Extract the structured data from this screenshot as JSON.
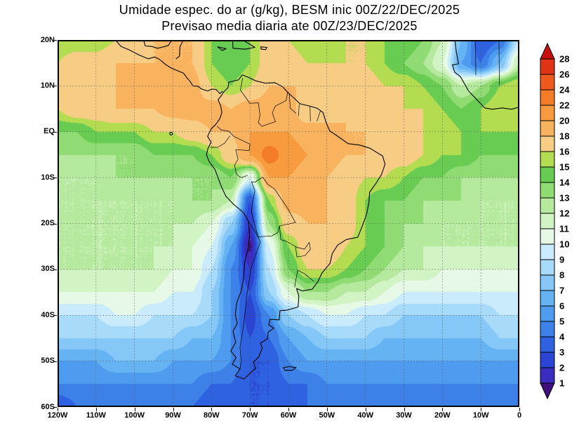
{
  "title": {
    "line1": "Umidade espec. do ar (g/kg), BESM inic 00Z/22/DEC/2025",
    "line2": "Previsao media diaria ate 00Z/23/DEC/2025"
  },
  "chart_data": {
    "type": "heatmap",
    "title": "Umidade espec. do ar (g/kg), BESM inic 00Z/22/DEC/2025",
    "subtitle": "Previsao media diaria ate 00Z/23/DEC/2025",
    "units": "g/kg",
    "lon_range": [
      -120,
      0
    ],
    "lat_range": [
      -60,
      20
    ],
    "grid_on": true,
    "legend_position": "right",
    "lat_ticks": [
      {
        "label": "20N",
        "value": 20
      },
      {
        "label": "10N",
        "value": 10
      },
      {
        "label": "EQ",
        "value": 0
      },
      {
        "label": "10S",
        "value": -10
      },
      {
        "label": "20S",
        "value": -20
      },
      {
        "label": "30S",
        "value": -30
      },
      {
        "label": "40S",
        "value": -40
      },
      {
        "label": "50S",
        "value": -50
      },
      {
        "label": "60S",
        "value": -60
      }
    ],
    "lon_ticks": [
      {
        "label": "120W",
        "value": -120
      },
      {
        "label": "110W",
        "value": -110
      },
      {
        "label": "100W",
        "value": -100
      },
      {
        "label": "90W",
        "value": -90
      },
      {
        "label": "80W",
        "value": -80
      },
      {
        "label": "70W",
        "value": -70
      },
      {
        "label": "60W",
        "value": -60
      },
      {
        "label": "50W",
        "value": -50
      },
      {
        "label": "40W",
        "value": -40
      },
      {
        "label": "30W",
        "value": -30
      },
      {
        "label": "20W",
        "value": -20
      },
      {
        "label": "10W",
        "value": -10
      },
      {
        "label": "0",
        "value": 0
      }
    ],
    "colorbar": {
      "levels": [
        1,
        2,
        3,
        4,
        5,
        6,
        7,
        8,
        9,
        10,
        11,
        12,
        13,
        14,
        15,
        16,
        18,
        20,
        22,
        24,
        26,
        28
      ],
      "colors": [
        "#40107a",
        "#3b2bbf",
        "#2a44d4",
        "#2f62e0",
        "#3c80e8",
        "#4f9bef",
        "#66b3f4",
        "#85c8f7",
        "#a8dafa",
        "#c9ebfc",
        "#e6f9e6",
        "#d2f3c4",
        "#b5e99d",
        "#90db74",
        "#68cb52",
        "#b4dc50",
        "#f7cd85",
        "#f9b35e",
        "#f79b3e",
        "#f47b28",
        "#ee5a1e",
        "#e03418",
        "#c81010"
      ]
    },
    "lons": [
      -120,
      -115,
      -110,
      -105,
      -100,
      -95,
      -90,
      -85,
      -80,
      -75,
      -70,
      -65,
      -60,
      -55,
      -50,
      -45,
      -40,
      -35,
      -30,
      -25,
      -20,
      -15,
      -10,
      -5,
      0
    ],
    "lats": [
      20,
      15,
      10,
      5,
      0,
      -5,
      -10,
      -15,
      -20,
      -25,
      -30,
      -35,
      -40,
      -45,
      -50,
      -55,
      -60
    ],
    "grid": [
      [
        15,
        15,
        15,
        16,
        17,
        18,
        18,
        18,
        15,
        14,
        15,
        17,
        16,
        15,
        15,
        16,
        16,
        15,
        15,
        14,
        12,
        7,
        3,
        4,
        9
      ],
      [
        16,
        17,
        17,
        18,
        18,
        18,
        18,
        18,
        15,
        14,
        15,
        17,
        17,
        16,
        16,
        16,
        16,
        15,
        14,
        13,
        11,
        6,
        4,
        7,
        12
      ],
      [
        17,
        18,
        18,
        18,
        19,
        19,
        19,
        19,
        16,
        15,
        16,
        18,
        18,
        18,
        18,
        17,
        17,
        16,
        16,
        15,
        14,
        12,
        13,
        15,
        16
      ],
      [
        16,
        17,
        17,
        18,
        18,
        18,
        19,
        19,
        19,
        18,
        19,
        19,
        19,
        16,
        16,
        18,
        17,
        17,
        16,
        16,
        15,
        14,
        15,
        16,
        16
      ],
      [
        14,
        14,
        15,
        15,
        15,
        16,
        16,
        17,
        18,
        18,
        20,
        20,
        20,
        19,
        19,
        18,
        18,
        17,
        17,
        16,
        16,
        15,
        15,
        15,
        15
      ],
      [
        13,
        13,
        13,
        13,
        13,
        14,
        14,
        14,
        15,
        17,
        20,
        23,
        21,
        20,
        19,
        18,
        18,
        17,
        17,
        16,
        15,
        15,
        14,
        14,
        14
      ],
      [
        12,
        12,
        12,
        13,
        13,
        13,
        13,
        13,
        13,
        14,
        10,
        20,
        20,
        19,
        18,
        17,
        16,
        16,
        15,
        14,
        14,
        13,
        13,
        13,
        13
      ],
      [
        12,
        12,
        12,
        12,
        12,
        12,
        12,
        13,
        13,
        12,
        3,
        15,
        19,
        19,
        18,
        17,
        15,
        14,
        14,
        13,
        13,
        13,
        12,
        12,
        12
      ],
      [
        12,
        12,
        12,
        12,
        12,
        12,
        12,
        12,
        11,
        8,
        2,
        13,
        17,
        18,
        18,
        17,
        15,
        14,
        13,
        13,
        12,
        12,
        12,
        12,
        12
      ],
      [
        12,
        12,
        12,
        12,
        12,
        12,
        12,
        11,
        10,
        6,
        0.8,
        10,
        15,
        17,
        18,
        16,
        15,
        14,
        13,
        12,
        12,
        12,
        12,
        12,
        12
      ],
      [
        12,
        12,
        12,
        12,
        12,
        12,
        11,
        11,
        9,
        5,
        2,
        9,
        14,
        16,
        16,
        15,
        14,
        13,
        12,
        12,
        11,
        11,
        11,
        11,
        11
      ],
      [
        11,
        11,
        11,
        11,
        11,
        11,
        10,
        10,
        8,
        5,
        3,
        8,
        11,
        13,
        13,
        12,
        12,
        11,
        10,
        10,
        10,
        10,
        10,
        10,
        10
      ],
      [
        9,
        9,
        9,
        10,
        10,
        9,
        9,
        9,
        8,
        5,
        2.5,
        5,
        8,
        9,
        10,
        10,
        9,
        9,
        8,
        8,
        8,
        8,
        8,
        9,
        9
      ],
      [
        8,
        8,
        8,
        8,
        8,
        8,
        8,
        7,
        7,
        5,
        3,
        4,
        6,
        7,
        8,
        8,
        8,
        7,
        7,
        7,
        7,
        7,
        7,
        8,
        8
      ],
      [
        6,
        6,
        6,
        7,
        7,
        7,
        6,
        6,
        6,
        5,
        3,
        3,
        5,
        6,
        6,
        6,
        6,
        6,
        6,
        6,
        6,
        6,
        6,
        6,
        6
      ],
      [
        5,
        5,
        5,
        5,
        5,
        5,
        5,
        5,
        4,
        4,
        3,
        3,
        4,
        4,
        5,
        5,
        5,
        5,
        5,
        5,
        5,
        5,
        5,
        5,
        5
      ],
      [
        3,
        4,
        4,
        4,
        4,
        4,
        4,
        4,
        3,
        3,
        3,
        3,
        3,
        4,
        4,
        4,
        4,
        4,
        4,
        4,
        4,
        4,
        4,
        4,
        4
      ]
    ]
  }
}
